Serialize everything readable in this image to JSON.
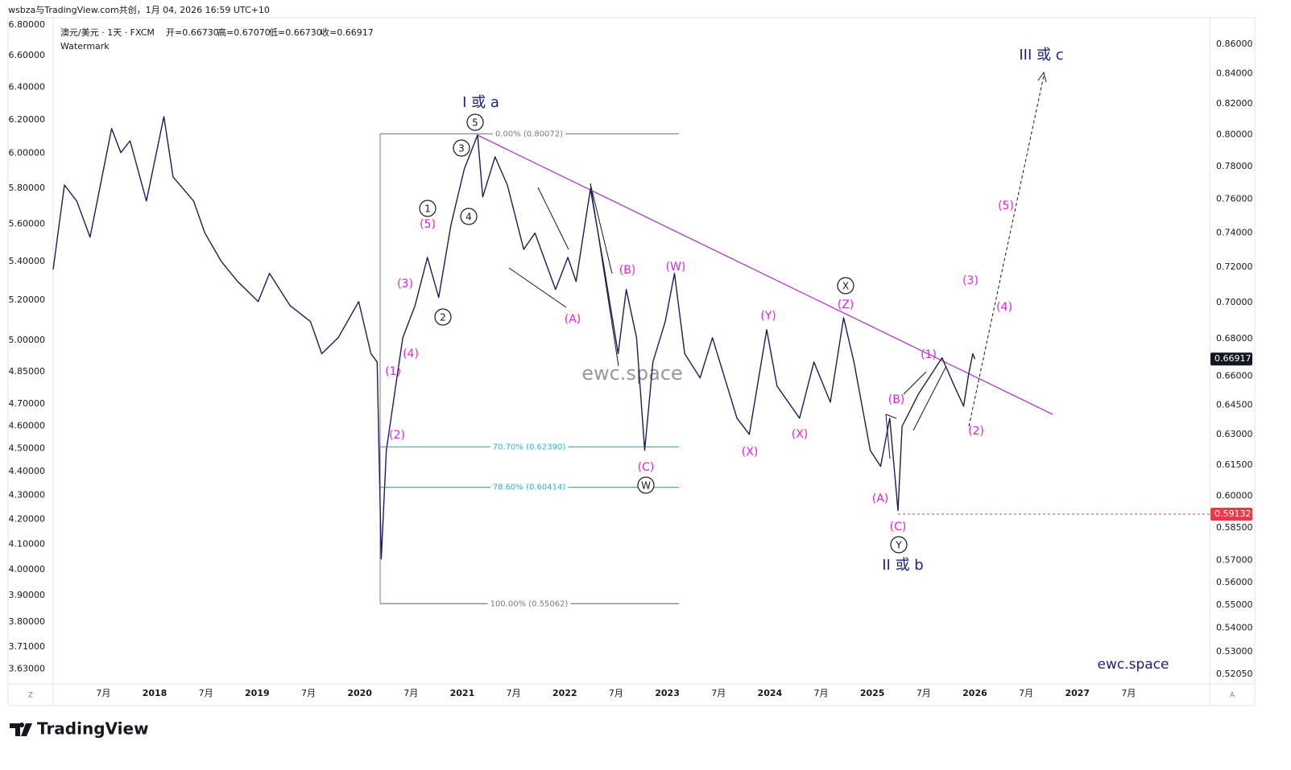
{
  "header": {
    "attribution": "wsbza与TradingView.com共创，1月 04, 2026 16:59 UTC+10",
    "logo": "TradingView"
  },
  "chart_data": {
    "type": "line",
    "title": "澳元/美元 · 1天 · FXCM",
    "ohlc": [
      "开=0.66730",
      "高=0.67070",
      "低=0.66730",
      "收=0.66917"
    ],
    "subtitle": "Watermark",
    "watermarks": [
      "ewc.space",
      "ewc.space"
    ],
    "x": [
      2017.01,
      2017.12,
      2017.24,
      2017.37,
      2017.58,
      2017.67,
      2017.76,
      2017.92,
      2018.09,
      2018.18,
      2018.38,
      2018.49,
      2018.65,
      2018.81,
      2019.01,
      2019.12,
      2019.32,
      2019.52,
      2019.63,
      2019.79,
      2019.99,
      2020.11,
      2020.17,
      2020.21,
      2020.26,
      2020.34,
      2020.42,
      2020.54,
      2020.66,
      2020.77,
      2020.89,
      2021.02,
      2021.15,
      2021.2,
      2021.32,
      2021.44,
      2021.6,
      2021.71,
      2021.91,
      2022.03,
      2022.11,
      2022.25,
      2022.38,
      2022.52,
      2022.6,
      2022.7,
      2022.78,
      2022.86,
      2022.98,
      2023.07,
      2023.17,
      2023.32,
      2023.44,
      2023.68,
      2023.8,
      2023.97,
      2024.07,
      2024.29,
      2024.43,
      2024.59,
      2024.72,
      2024.82,
      2024.98,
      2025.08,
      2025.17,
      2025.25,
      2025.29,
      2025.45,
      2025.68,
      2025.8,
      2025.89,
      2025.94,
      2025.98,
      2026.0
    ],
    "values": [
      0.7187,
      0.7687,
      0.759,
      0.7374,
      0.8041,
      0.7888,
      0.7963,
      0.759,
      0.8118,
      0.7737,
      0.759,
      0.7398,
      0.7233,
      0.7118,
      0.7005,
      0.7164,
      0.6983,
      0.6894,
      0.672,
      0.6806,
      0.7005,
      0.672,
      0.6676,
      0.5706,
      0.6222,
      0.6508,
      0.6806,
      0.6983,
      0.7256,
      0.7028,
      0.7445,
      0.7786,
      0.8,
      0.7614,
      0.7862,
      0.7687,
      0.7303,
      0.7398,
      0.7073,
      0.7256,
      0.7118,
      0.7663,
      0.721,
      0.672,
      0.7073,
      0.6806,
      0.6222,
      0.6676,
      0.6894,
      0.7164,
      0.672,
      0.6592,
      0.6806,
      0.6383,
      0.6302,
      0.685,
      0.6549,
      0.6383,
      0.6676,
      0.6465,
      0.6916,
      0.6676,
      0.6222,
      0.6143,
      0.6383,
      0.593,
      0.6342,
      0.6508,
      0.6698,
      0.6549,
      0.6445,
      0.6613,
      0.672,
      0.66917
    ],
    "color": "#1c1c5c",
    "xlim": [
      2017.01,
      2028.29
    ],
    "xticks": [
      {
        "value": 2017.5,
        "label": "7月"
      },
      2018,
      {
        "value": 2018.5,
        "label": "7月"
      },
      2019,
      {
        "value": 2019.5,
        "label": "7月"
      },
      2020,
      {
        "value": 2020.5,
        "label": "7月"
      },
      2021,
      {
        "value": 2021.5,
        "label": "7月"
      },
      2022,
      {
        "value": 2022.5,
        "label": "7月"
      },
      2023,
      {
        "value": 2023.5,
        "label": "7月"
      },
      2024,
      {
        "value": 2024.5,
        "label": "7月"
      },
      2025,
      {
        "value": 2025.5,
        "label": "7月"
      },
      2026,
      {
        "value": 2026.5,
        "label": "7月"
      },
      2027,
      {
        "value": 2027.5,
        "label": "7月"
      }
    ],
    "ylim": [
      0.5165,
      0.875
    ],
    "log": true,
    "yticks": [
      {
        "value": 0.86,
        "label": "0.86000"
      },
      {
        "value": 0.84,
        "label": "0.84000"
      },
      {
        "value": 0.82,
        "label": "0.82000"
      },
      {
        "value": 0.8,
        "label": "0.80000"
      },
      {
        "value": 0.78,
        "label": "0.78000"
      },
      {
        "value": 0.76,
        "label": "0.76000"
      },
      {
        "value": 0.74,
        "label": "0.74000"
      },
      {
        "value": 0.72,
        "label": "0.72000"
      },
      {
        "value": 0.7,
        "label": "0.70000"
      },
      {
        "value": 0.68,
        "label": "0.68000"
      },
      {
        "value": 0.66,
        "label": "0.66000"
      },
      {
        "value": 0.645,
        "label": "0.64500"
      },
      {
        "value": 0.63,
        "label": "0.63000"
      },
      {
        "value": 0.615,
        "label": "0.61500"
      },
      {
        "value": 0.6,
        "label": "0.60000"
      },
      {
        "value": 0.585,
        "label": "0.58500"
      },
      {
        "value": 0.57,
        "label": "0.57000"
      },
      {
        "value": 0.56,
        "label": "0.56000"
      },
      {
        "value": 0.55,
        "label": "0.55000"
      },
      {
        "value": 0.54,
        "label": "0.54000"
      },
      {
        "value": 0.53,
        "label": "0.53000"
      },
      {
        "value": 0.5205,
        "label": "0.52050"
      }
    ],
    "y2lim": [
      3.578,
      6.816
    ],
    "y2ticks": [
      {
        "value": 6.8,
        "label": "6.80000"
      },
      {
        "value": 6.6,
        "label": "6.60000"
      },
      {
        "value": 6.4,
        "label": "6.40000"
      },
      {
        "value": 6.2,
        "label": "6.20000"
      },
      {
        "value": 6,
        "label": "6.00000"
      },
      {
        "value": 5.8,
        "label": "5.80000"
      },
      {
        "value": 5.6,
        "label": "5.60000"
      },
      {
        "value": 5.4,
        "label": "5.40000"
      },
      {
        "value": 5.2,
        "label": "5.20000"
      },
      {
        "value": 5,
        "label": "5.00000"
      },
      {
        "value": 4.85,
        "label": "4.85000"
      },
      {
        "value": 4.7,
        "label": "4.70000"
      },
      {
        "value": 4.6,
        "label": "4.60000"
      },
      {
        "value": 4.5,
        "label": "4.50000"
      },
      {
        "value": 4.4,
        "label": "4.40000"
      },
      {
        "value": 4.3,
        "label": "4.30000"
      },
      {
        "value": 4.2,
        "label": "4.20000"
      },
      {
        "value": 4.1,
        "label": "4.10000"
      },
      {
        "value": 4,
        "label": "4.00000"
      },
      {
        "value": 3.9,
        "label": "3.90000"
      },
      {
        "value": 3.8,
        "label": "3.80000"
      },
      {
        "value": 3.71,
        "label": "3.71000"
      },
      {
        "value": 3.63,
        "label": "3.63000"
      }
    ],
    "last_price": 0.66917,
    "low_marker": 0.59132,
    "fib_levels": [
      {
        "value": 0.80072,
        "label": "0.00% (0.80072)",
        "color": "#787b86"
      },
      {
        "value": 0.6239,
        "label": "70.70% (0.62390)",
        "color": "#22b8cf"
      },
      {
        "value": 0.60414,
        "label": "78.60% (0.60414)",
        "color": "#22b8cf"
      },
      {
        "value": 0.55062,
        "label": "100.00% (0.55062)",
        "color": "#787b86"
      }
    ],
    "annotations": [
      {
        "text": "I 或 a",
        "style": "degree"
      },
      {
        "text": "II 或 b",
        "style": "degree"
      },
      {
        "text": "III 或 c",
        "style": "degree"
      },
      {
        "text": "5",
        "style": "circled"
      },
      {
        "text": "3",
        "style": "circled"
      },
      {
        "text": "1",
        "style": "circled"
      },
      {
        "text": "4",
        "style": "circled"
      },
      {
        "text": "2",
        "style": "circled"
      },
      {
        "text": "W",
        "style": "circled"
      },
      {
        "text": "X",
        "style": "circled"
      },
      {
        "text": "Y",
        "style": "circled"
      },
      {
        "text": "(5)",
        "style": "minor"
      },
      {
        "text": "(3)",
        "style": "minor"
      },
      {
        "text": "(4)",
        "style": "minor"
      },
      {
        "text": "(1)",
        "style": "minor"
      },
      {
        "text": "(2)",
        "style": "minor"
      },
      {
        "text": "(B)",
        "style": "minor"
      },
      {
        "text": "(W)",
        "style": "minor"
      },
      {
        "text": "(A)",
        "style": "minor"
      },
      {
        "text": "(C)",
        "style": "minor"
      },
      {
        "text": "(Y)",
        "style": "minor"
      },
      {
        "text": "(X)",
        "style": "minor"
      },
      {
        "text": "(X)",
        "style": "minor"
      },
      {
        "text": "(Z)",
        "style": "minor"
      },
      {
        "text": "(A)",
        "style": "minor"
      },
      {
        "text": "(C)",
        "style": "minor"
      },
      {
        "text": "(B)",
        "style": "minor"
      },
      {
        "text": "(1)",
        "style": "minor"
      },
      {
        "text": "(3)",
        "style": "minor"
      },
      {
        "text": "(4)",
        "style": "minor"
      },
      {
        "text": "(5)",
        "style": "minor"
      },
      {
        "text": "(2)",
        "style": "minor"
      }
    ],
    "scale_buttons": [
      "Z",
      "A"
    ]
  }
}
